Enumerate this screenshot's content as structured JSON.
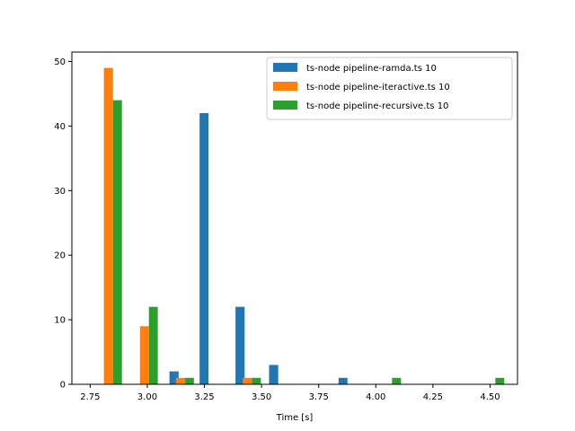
{
  "chart_data": {
    "type": "bar",
    "title": "",
    "xlabel": "Time [s]",
    "ylabel": "",
    "xlim": [
      2.67,
      4.62
    ],
    "ylim": [
      0,
      51.45
    ],
    "grid": false,
    "legend_position": "top-right",
    "xticks": [
      {
        "value": 2.75,
        "label": "2.75"
      },
      {
        "value": 3.0,
        "label": "3.00"
      },
      {
        "value": 3.25,
        "label": "3.25"
      },
      {
        "value": 3.5,
        "label": "3.50"
      },
      {
        "value": 3.75,
        "label": "3.75"
      },
      {
        "value": 4.0,
        "label": "4.00"
      },
      {
        "value": 4.25,
        "label": "4.25"
      },
      {
        "value": 4.5,
        "label": "4.50"
      }
    ],
    "yticks": [
      {
        "value": 0,
        "label": "0"
      },
      {
        "value": 10,
        "label": "10"
      },
      {
        "value": 20,
        "label": "20"
      },
      {
        "value": 30,
        "label": "30"
      },
      {
        "value": 40,
        "label": "40"
      },
      {
        "value": 50,
        "label": "50"
      }
    ],
    "series": [
      {
        "name": "ts-node pipeline-ramda.ts 10",
        "color": "#1f77b4",
        "bars": [
          {
            "x0": 3.097,
            "x1": 3.137,
            "value": 2
          },
          {
            "x0": 3.229,
            "x1": 3.268,
            "value": 42
          },
          {
            "x0": 3.386,
            "x1": 3.426,
            "value": 12
          },
          {
            "x0": 3.533,
            "x1": 3.573,
            "value": 3
          },
          {
            "x0": 3.837,
            "x1": 3.876,
            "value": 1
          }
        ]
      },
      {
        "name": "ts-node pipeline-iteractive.ts 10",
        "color": "#ff7f0e",
        "bars": [
          {
            "x0": 2.81,
            "x1": 2.85,
            "value": 49
          },
          {
            "x0": 2.968,
            "x1": 3.007,
            "value": 9
          },
          {
            "x0": 3.125,
            "x1": 3.165,
            "value": 1
          },
          {
            "x0": 3.418,
            "x1": 3.458,
            "value": 1
          }
        ]
      },
      {
        "name": "ts-node pipeline-recursive.ts 10",
        "color": "#2ca02c",
        "bars": [
          {
            "x0": 2.85,
            "x1": 2.889,
            "value": 44
          },
          {
            "x0": 3.007,
            "x1": 3.046,
            "value": 12
          },
          {
            "x0": 3.165,
            "x1": 3.204,
            "value": 1
          },
          {
            "x0": 3.458,
            "x1": 3.497,
            "value": 1
          },
          {
            "x0": 4.071,
            "x1": 4.11,
            "value": 1
          },
          {
            "x0": 4.523,
            "x1": 4.562,
            "value": 1
          }
        ]
      }
    ]
  }
}
